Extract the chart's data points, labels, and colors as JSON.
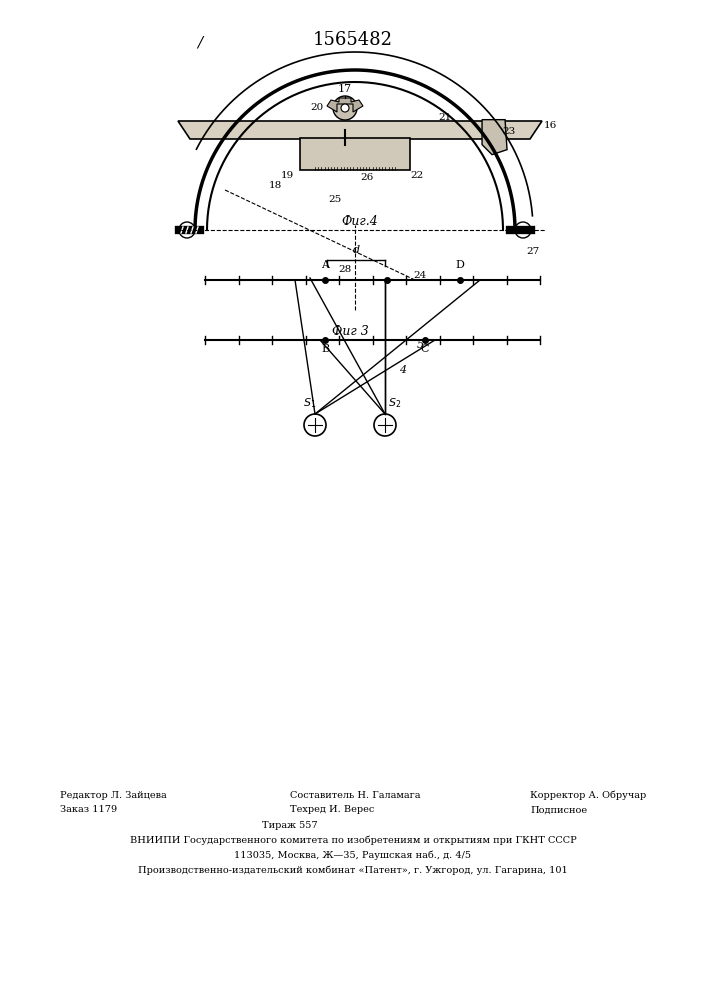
{
  "title": "1565482",
  "fig3_label": "Фиг 3",
  "fig4_label": "Фиг.4",
  "bg_color": "#ffffff",
  "line_color": "#000000",
  "footer_lines": [
    "Редактор Л. Зайцева          Составитель Н. Галамага          Корректор А. Обручар",
    "Заказ 1179          Техред И. Верес          Подписное",
    "                             Тираж 557",
    "ВНИИПИ Государственного комитета по изобретениям и открытиям при ГКНТ СССР",
    "113035, Москва, Ж— 35, Раушская наб., д. 4/5",
    "Производственно-издательский комбинат «Патент», г. Ужгород, ул. Гагарина, 101"
  ]
}
